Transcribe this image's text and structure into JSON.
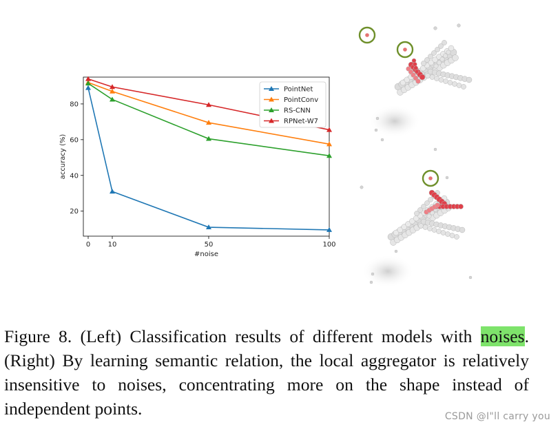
{
  "chart_data": {
    "type": "line",
    "title": "",
    "xlabel": "#noise",
    "ylabel": "accuracy (%)",
    "x": [
      0,
      10,
      50,
      100
    ],
    "xticks": [
      0,
      10,
      50,
      100
    ],
    "yticks": [
      20,
      40,
      60,
      80
    ],
    "xlim": [
      -2,
      100
    ],
    "ylim": [
      6,
      95
    ],
    "grid": false,
    "legend_position": "top-right",
    "series": [
      {
        "name": "PointNet",
        "color": "#1f77b4",
        "values": [
          89,
          31,
          11,
          9.5
        ]
      },
      {
        "name": "PointConv",
        "color": "#ff7f0e",
        "values": [
          92,
          87,
          69.5,
          57.5
        ]
      },
      {
        "name": "RS-CNN",
        "color": "#2ca02c",
        "values": [
          91.5,
          82.5,
          60.5,
          51
        ]
      },
      {
        "name": "RPNet-W7",
        "color": "#d62728",
        "values": [
          94,
          89.5,
          79.5,
          65.5
        ]
      }
    ]
  },
  "figure": {
    "right_panel": "point-cloud-airplanes",
    "caption_prefix": "Figure 8. (Left) Classification results of different models with ",
    "caption_highlight": "noises",
    "caption_suffix": ". (Right) By learning semantic relation, the local aggregator is relatively insensitive to noises, concentrating more on the shape instead of independent points."
  },
  "watermark": "CSDN @I\"ll  carry  you",
  "colors": {
    "highlight": "#7ee36b",
    "noise_ring": "#6e8f2a",
    "attention_red": "#e0404a"
  }
}
